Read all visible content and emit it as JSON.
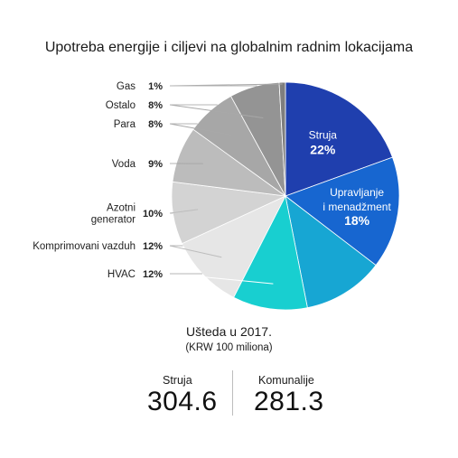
{
  "chart_data": {
    "type": "pie",
    "title": "Upotreba energije i ciljevi na globalnim radnim lokacijama",
    "slices": [
      {
        "label": "Struja",
        "value": 22,
        "value_label": "22%",
        "color": "#1f3fae"
      },
      {
        "label": "Upravljanje i menadžment",
        "label_lines": [
          "Upravljanje",
          "i menadžment"
        ],
        "value": 18,
        "value_label": "18%",
        "color": "#1766d0"
      },
      {
        "label": "",
        "value": 13,
        "color": "#17a6d3"
      },
      {
        "label": "HVAC",
        "value": 12,
        "value_label": "12%",
        "color": "#18cfd0"
      },
      {
        "label": "Komprimovani vazduh",
        "value": 12,
        "value_label": "12%",
        "color": "#e6e6e6"
      },
      {
        "label": "Azotni generator",
        "label_lines": [
          "Azotni",
          "generator"
        ],
        "value": 10,
        "value_label": "10%",
        "color": "#d3d3d3"
      },
      {
        "label": "Voda",
        "value": 9,
        "value_label": "9%",
        "color": "#bcbcbc"
      },
      {
        "label": "Para",
        "value": 8,
        "value_label": "8%",
        "color": "#a7a7a7"
      },
      {
        "label": "Ostalo",
        "value": 8,
        "value_label": "8%",
        "color": "#949494"
      },
      {
        "label": "Gas",
        "value": 1,
        "value_label": "1%",
        "color": "#7e7e7e"
      }
    ]
  },
  "savings": {
    "title": "Ušteda u 2017.",
    "subtitle": "(KRW 100 miliona)",
    "items": [
      {
        "label": "Struja",
        "value": "304.6"
      },
      {
        "label": "Komunalije",
        "value": "281.3"
      }
    ]
  }
}
